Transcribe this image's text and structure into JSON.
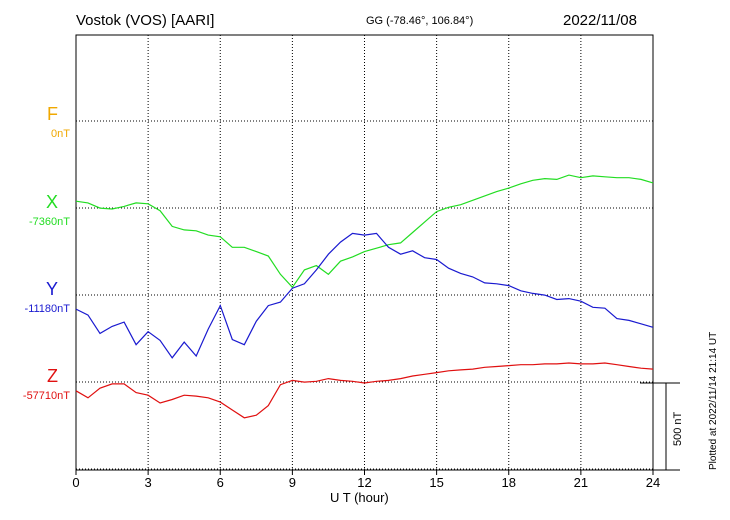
{
  "header": {
    "station": "Vostok (VOS)  [AARI]",
    "coords": "GG (-78.46°, 106.84°)",
    "date": "2022/11/08"
  },
  "side_note": "Plotted at 2022/11/14 21:14 UT",
  "scale_label": "500 nT",
  "colors": {
    "F": "#f0a800",
    "X": "#22dd22",
    "Y": "#1a1ad0",
    "Z": "#e01010",
    "grid": "#000000"
  },
  "chart_data": {
    "type": "line",
    "xlabel": "U T (hour)",
    "xlim": [
      0,
      24
    ],
    "xticks": [
      "0",
      "3",
      "6",
      "9",
      "12",
      "15",
      "18",
      "21",
      "24"
    ],
    "scale_bar_nT": 500,
    "series": [
      {
        "name": "F",
        "baseline_label": "0nT",
        "x": [],
        "y": []
      },
      {
        "name": "X",
        "baseline_label": "-7360nT",
        "x": [
          0,
          0.5,
          1,
          1.5,
          2,
          2.5,
          3,
          3.5,
          4,
          4.5,
          5,
          5.5,
          6,
          6.5,
          7,
          7.5,
          8,
          8.5,
          9,
          9.5,
          10,
          10.5,
          11,
          11.5,
          12,
          12.5,
          13,
          13.5,
          14,
          14.5,
          15,
          15.5,
          16,
          16.5,
          17,
          17.5,
          18,
          18.5,
          19,
          19.5,
          20,
          20.5,
          21,
          21.5,
          22,
          22.5,
          23,
          23.5,
          24
        ],
        "y": [
          45,
          35,
          5,
          0,
          15,
          35,
          30,
          -10,
          -100,
          -120,
          -125,
          -150,
          -160,
          -220,
          -220,
          -245,
          -270,
          -375,
          -450,
          -350,
          -325,
          -375,
          -300,
          -275,
          -245,
          -225,
          -205,
          -195,
          -135,
          -75,
          -15,
          10,
          25,
          50,
          75,
          100,
          120,
          145,
          165,
          175,
          170,
          195,
          180,
          190,
          185,
          180,
          180,
          170,
          150
        ]
      },
      {
        "name": "Y",
        "baseline_label": "-11180nT",
        "x": [
          0,
          0.5,
          1,
          1.5,
          2,
          2.5,
          3,
          3.5,
          4,
          4.5,
          5,
          5.5,
          6,
          6.5,
          7,
          7.5,
          8,
          8.5,
          9,
          9.5,
          10,
          10.5,
          11,
          11.5,
          12,
          12.5,
          13,
          13.5,
          14,
          14.5,
          15,
          15.5,
          16,
          16.5,
          17,
          17.5,
          18,
          18.5,
          19,
          19.5,
          20,
          20.5,
          21,
          21.5,
          22,
          22.5,
          23,
          23.5,
          24
        ],
        "y": [
          -75,
          -110,
          -215,
          -175,
          -150,
          -280,
          -205,
          -255,
          -355,
          -265,
          -345,
          -190,
          -55,
          -250,
          -280,
          -145,
          -55,
          -35,
          45,
          70,
          150,
          240,
          310,
          360,
          350,
          360,
          280,
          240,
          260,
          220,
          210,
          160,
          130,
          110,
          75,
          70,
          60,
          30,
          15,
          5,
          -20,
          -15,
          -30,
          -65,
          -70,
          -130,
          -140,
          -160,
          -180
        ]
      },
      {
        "name": "Z",
        "baseline_label": "-57710nT",
        "x": [
          0,
          0.5,
          1,
          1.5,
          2,
          2.5,
          3,
          3.5,
          4,
          4.5,
          5,
          5.5,
          6,
          6.5,
          7,
          7.5,
          8,
          8.5,
          9,
          9.5,
          10,
          10.5,
          11,
          11.5,
          12,
          12.5,
          13,
          13.5,
          14,
          14.5,
          15,
          15.5,
          16,
          16.5,
          17,
          17.5,
          18,
          18.5,
          19,
          19.5,
          20,
          20.5,
          21,
          21.5,
          22,
          22.5,
          23,
          23.5,
          24
        ],
        "y": [
          -45,
          -85,
          -30,
          -5,
          -5,
          -55,
          -70,
          -115,
          -95,
          -70,
          -75,
          -85,
          -110,
          -155,
          -200,
          -185,
          -130,
          -10,
          15,
          5,
          10,
          25,
          15,
          10,
          0,
          10,
          15,
          25,
          40,
          50,
          60,
          70,
          75,
          80,
          90,
          95,
          100,
          105,
          105,
          110,
          110,
          115,
          110,
          110,
          115,
          105,
          95,
          85,
          80
        ]
      }
    ]
  }
}
